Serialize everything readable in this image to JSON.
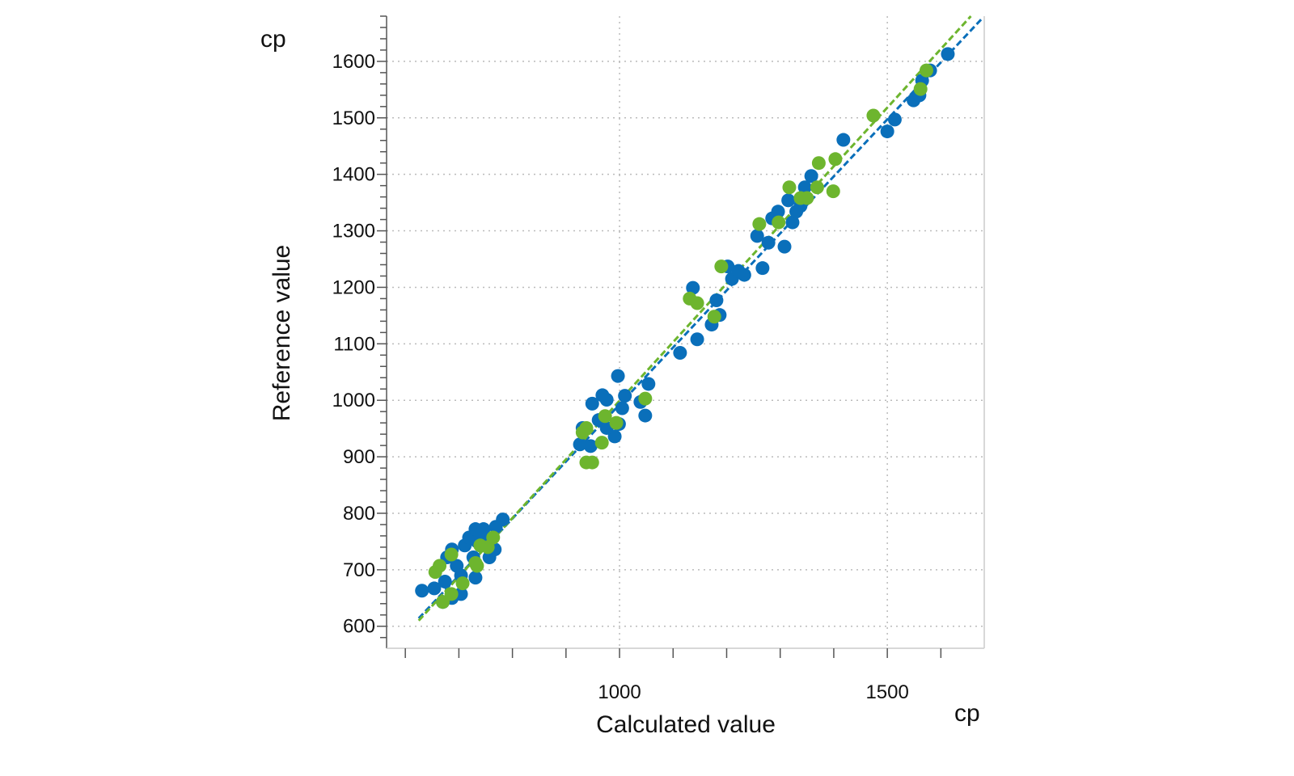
{
  "chart_data": {
    "type": "scatter",
    "title": "",
    "xlabel": "Calculated value",
    "ylabel": "Reference value",
    "x_unit": "cp",
    "y_unit": "cp",
    "xlim": [
      565,
      1681
    ],
    "ylim": [
      561,
      1680
    ],
    "x_ticks": [
      1000,
      1500
    ],
    "x_minor_ticks": [
      600,
      700,
      800,
      900,
      1000,
      1100,
      1200,
      1300,
      1400,
      1500,
      1600
    ],
    "y_ticks": [
      600,
      700,
      800,
      900,
      1000,
      1100,
      1200,
      1300,
      1400,
      1500,
      1600
    ],
    "grid": true,
    "colors": {
      "series_blue": "#0a6fba",
      "series_green": "#6db52e",
      "grid": "#bbbbbb",
      "axis": "#555555"
    },
    "series": [
      {
        "color": "#0a6fba",
        "points": [
          [
            631,
            663
          ],
          [
            654,
            667
          ],
          [
            670,
            643
          ],
          [
            678,
            722
          ],
          [
            687,
            736
          ],
          [
            696,
            707
          ],
          [
            704,
            690
          ],
          [
            711,
            743
          ],
          [
            719,
            757
          ],
          [
            727,
            722
          ],
          [
            731,
            772
          ],
          [
            746,
            772
          ],
          [
            734,
            750
          ],
          [
            749,
            757
          ],
          [
            757,
            722
          ],
          [
            767,
            736
          ],
          [
            769,
            776
          ],
          [
            782,
            789
          ],
          [
            687,
            650
          ],
          [
            704,
            657
          ],
          [
            731,
            686
          ],
          [
            674,
            679
          ],
          [
            926,
            922
          ],
          [
            931,
            951
          ],
          [
            949,
            994
          ],
          [
            946,
            919
          ],
          [
            968,
            1009
          ],
          [
            976,
            1001
          ],
          [
            961,
            965
          ],
          [
            991,
            936
          ],
          [
            997,
            1043
          ],
          [
            999,
            958
          ],
          [
            1010,
            1008
          ],
          [
            1005,
            986
          ],
          [
            1039,
            997
          ],
          [
            1048,
            973
          ],
          [
            1054,
            1029
          ],
          [
            976,
            951
          ],
          [
            1113,
            1084
          ],
          [
            1137,
            1199
          ],
          [
            1145,
            1108
          ],
          [
            1172,
            1134
          ],
          [
            1181,
            1177
          ],
          [
            1187,
            1151
          ],
          [
            1202,
            1237
          ],
          [
            1210,
            1215
          ],
          [
            1222,
            1229
          ],
          [
            1233,
            1222
          ],
          [
            1257,
            1291
          ],
          [
            1267,
            1234
          ],
          [
            1278,
            1279
          ],
          [
            1285,
            1322
          ],
          [
            1296,
            1334
          ],
          [
            1308,
            1272
          ],
          [
            1315,
            1354
          ],
          [
            1323,
            1315
          ],
          [
            1330,
            1334
          ],
          [
            1338,
            1344
          ],
          [
            1346,
            1377
          ],
          [
            1358,
            1397
          ],
          [
            1418,
            1461
          ],
          [
            1500,
            1476
          ],
          [
            1514,
            1497
          ],
          [
            1549,
            1531
          ],
          [
            1560,
            1540
          ],
          [
            1565,
            1566
          ],
          [
            1580,
            1584
          ],
          [
            1613,
            1613
          ]
        ],
        "fit_line": [
          [
            625,
            614
          ],
          [
            1678,
            1677
          ]
        ]
      },
      {
        "color": "#6db52e",
        "points": [
          [
            656,
            696
          ],
          [
            664,
            707
          ],
          [
            686,
            727
          ],
          [
            670,
            643
          ],
          [
            686,
            657
          ],
          [
            707,
            676
          ],
          [
            734,
            707
          ],
          [
            740,
            743
          ],
          [
            754,
            740
          ],
          [
            764,
            757
          ],
          [
            731,
            712
          ],
          [
            931,
            943
          ],
          [
            938,
            951
          ],
          [
            938,
            890
          ],
          [
            949,
            890
          ],
          [
            967,
            925
          ],
          [
            973,
            972
          ],
          [
            994,
            960
          ],
          [
            1048,
            1003
          ],
          [
            1131,
            1180
          ],
          [
            1145,
            1172
          ],
          [
            1177,
            1148
          ],
          [
            1190,
            1237
          ],
          [
            1261,
            1312
          ],
          [
            1297,
            1315
          ],
          [
            1317,
            1377
          ],
          [
            1338,
            1358
          ],
          [
            1350,
            1358
          ],
          [
            1369,
            1377
          ],
          [
            1372,
            1420
          ],
          [
            1399,
            1370
          ],
          [
            1403,
            1427
          ],
          [
            1474,
            1504
          ],
          [
            1562,
            1551
          ],
          [
            1573,
            1584
          ]
        ],
        "fit_line": [
          [
            625,
            610
          ],
          [
            1656,
            1680
          ]
        ]
      }
    ]
  }
}
